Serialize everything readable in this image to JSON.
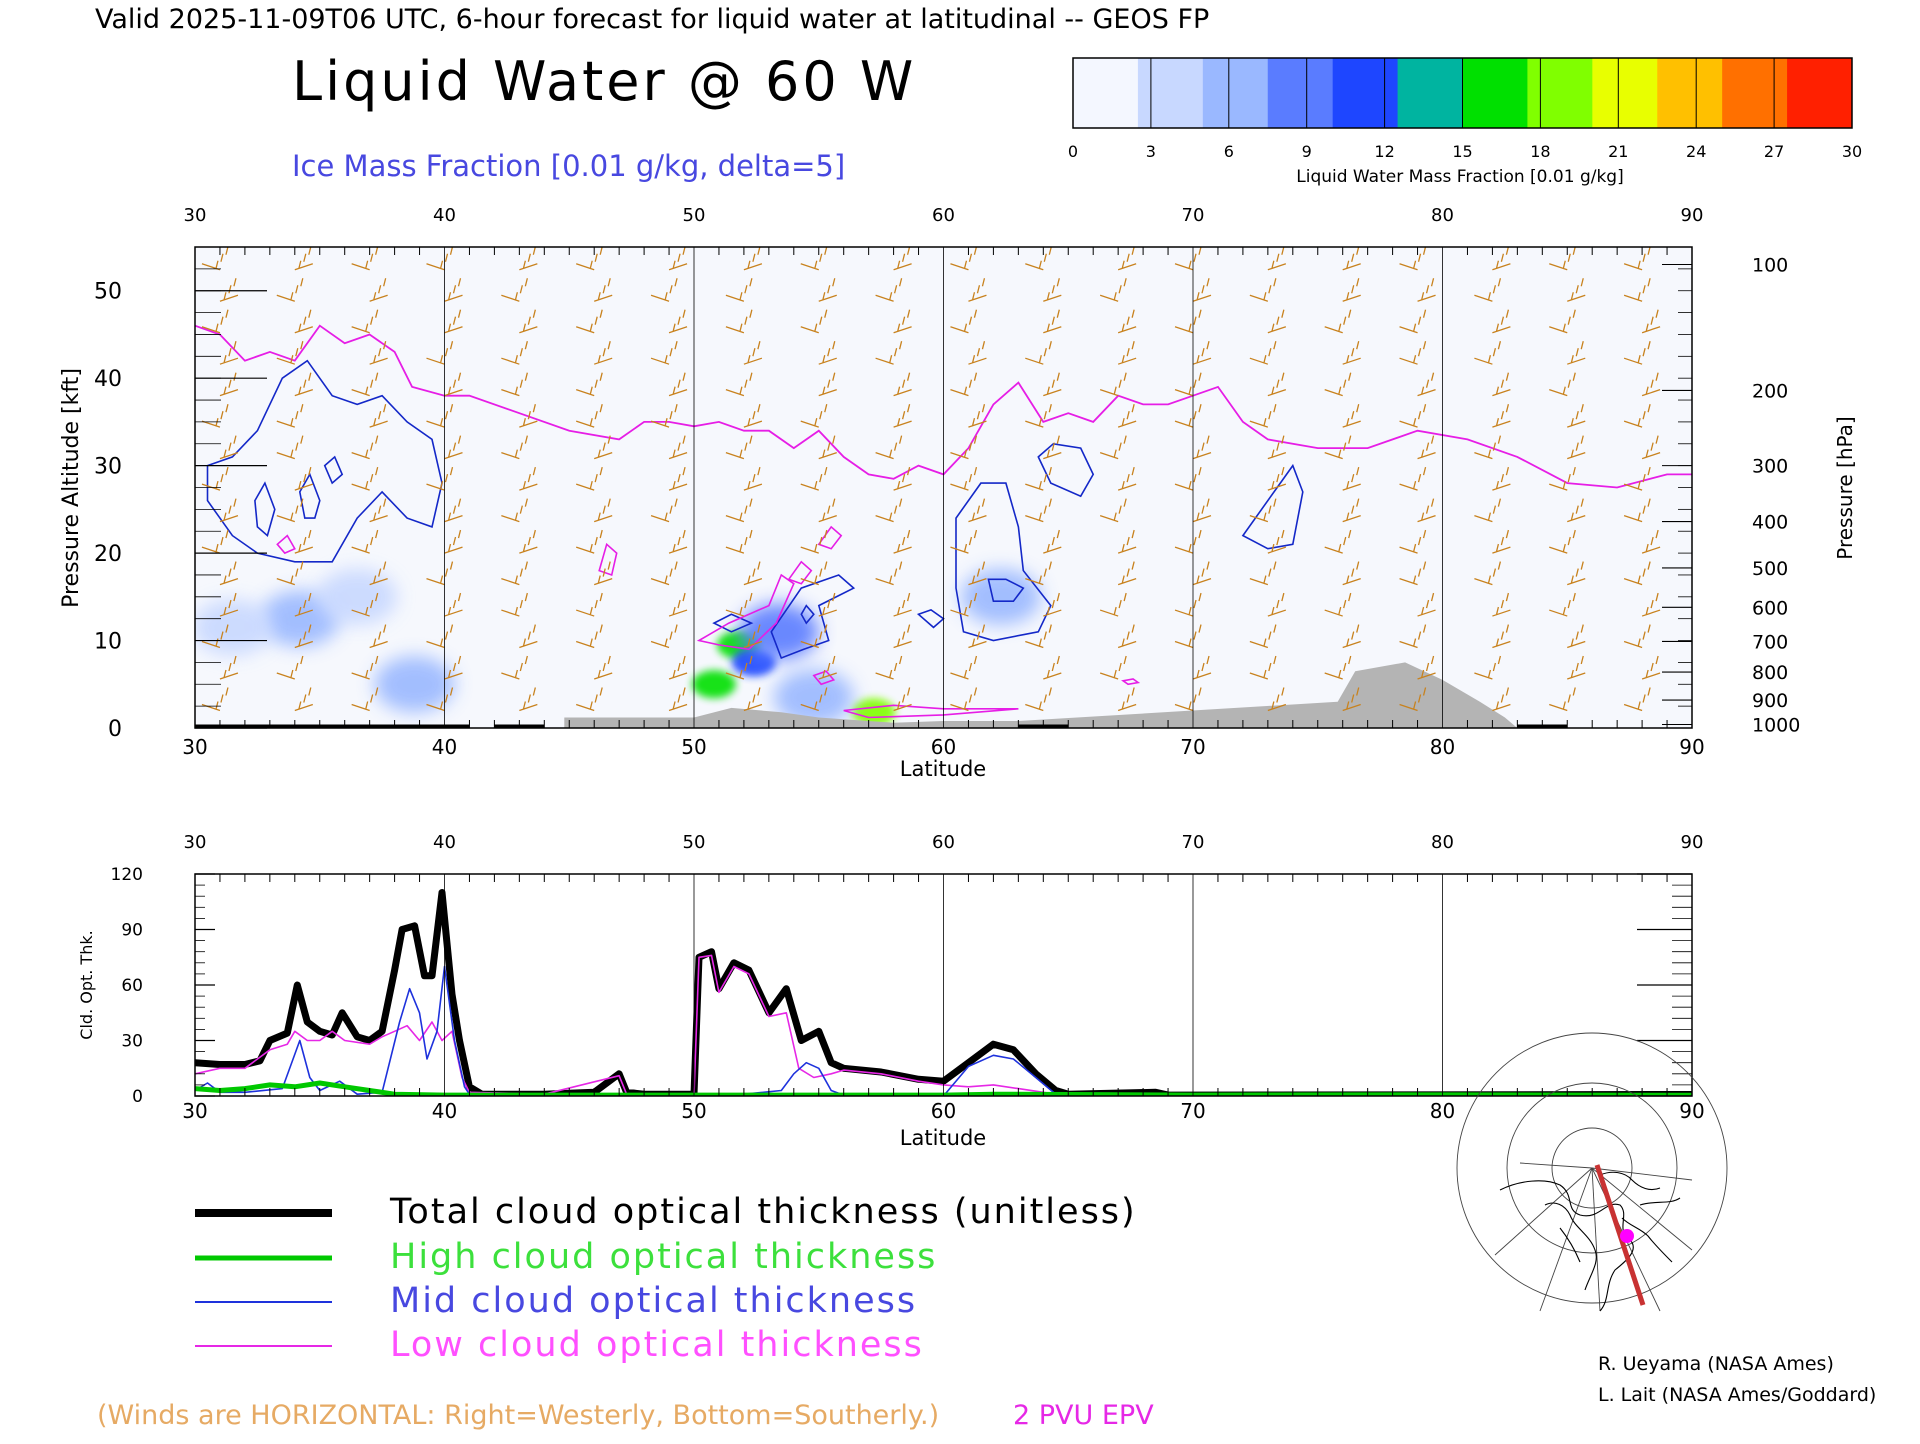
{
  "header": {
    "valid_line": "Valid 2025-11-09T06 UTC, 6-hour forecast for liquid water at latitudinal -- GEOS FP",
    "main_title": "Liquid Water @ 60 W",
    "subtitle": "Ice Mass Fraction [0.01 g/kg, delta=5]"
  },
  "colorbar": {
    "label": "Liquid Water Mass Fraction [0.01 g/kg]",
    "ticks": [
      "0",
      "3",
      "6",
      "9",
      "12",
      "15",
      "18",
      "21",
      "24",
      "27",
      "30"
    ],
    "colors": [
      "#f4f7ff",
      "#c8d8ff",
      "#9ab8ff",
      "#5a7cff",
      "#1e46ff",
      "#00b4a0",
      "#00e000",
      "#80ff00",
      "#e8ff00",
      "#ffc000",
      "#ff7000",
      "#ff2000"
    ]
  },
  "colors": {
    "wind_barb": "#c8821e",
    "ice_contour": "#1428c8",
    "epv_contour": "#e61ee6",
    "terrain": "#b4b4b4",
    "total": "#000000",
    "high": "#00c800",
    "mid": "#1e32dc",
    "low": "#e628e6"
  },
  "chart_data": [
    {
      "type": "heatmap",
      "title": "Liquid Water @ 60 W",
      "subtitle": "Ice Mass Fraction [0.01 g/kg, delta=5]",
      "xlabel": "Latitude",
      "ylabel": "Pressure Altitude [kft]",
      "ylabel_right": "Pressure [hPa]",
      "xlim": [
        30,
        90
      ],
      "ylim": [
        0,
        55
      ],
      "x_ticks": [
        "30",
        "40",
        "50",
        "60",
        "70",
        "80",
        "90"
      ],
      "y_ticks": [
        "0",
        "10",
        "20",
        "30",
        "40",
        "50"
      ],
      "pressure_ticks": [
        {
          "label": "100",
          "kft": 53
        },
        {
          "label": "200",
          "kft": 38.6
        },
        {
          "label": "300",
          "kft": 30
        },
        {
          "label": "400",
          "kft": 23.6
        },
        {
          "label": "500",
          "kft": 18.3
        },
        {
          "label": "600",
          "kft": 13.8
        },
        {
          "label": "700",
          "kft": 9.9
        },
        {
          "label": "800",
          "kft": 6.4
        },
        {
          "label": "900",
          "kft": 3.2
        },
        {
          "label": "1000",
          "kft": 0.4
        }
      ],
      "liquid_water_blobs": [
        {
          "lat": 51.8,
          "kft": 9.5,
          "value": 18
        },
        {
          "lat": 50.8,
          "kft": 5.0,
          "value": 18
        },
        {
          "lat": 52.4,
          "kft": 7.5,
          "value": 12
        },
        {
          "lat": 53.4,
          "kft": 11.0,
          "value": 9
        },
        {
          "lat": 57.2,
          "kft": 1.8,
          "value": 21
        },
        {
          "lat": 34.2,
          "kft": 12.5,
          "value": 6
        },
        {
          "lat": 38.8,
          "kft": 5.0,
          "value": 6
        },
        {
          "lat": 62.3,
          "kft": 15.0,
          "value": 6
        },
        {
          "lat": 31.5,
          "kft": 11.5,
          "value": 3
        },
        {
          "lat": 36.5,
          "kft": 15.0,
          "value": 3
        },
        {
          "lat": 54.8,
          "kft": 3.5,
          "value": 6
        }
      ],
      "epv_2pvu_line": [
        [
          30,
          46
        ],
        [
          31,
          45
        ],
        [
          32,
          42
        ],
        [
          33,
          43
        ],
        [
          34,
          42
        ],
        [
          35,
          46
        ],
        [
          36,
          44
        ],
        [
          37,
          45
        ],
        [
          38,
          43
        ],
        [
          38.7,
          39
        ],
        [
          40,
          38
        ],
        [
          41,
          38
        ],
        [
          43,
          36
        ],
        [
          45,
          34
        ],
        [
          47,
          33
        ],
        [
          48,
          35
        ],
        [
          49,
          35
        ],
        [
          50,
          34.5
        ],
        [
          51,
          35
        ],
        [
          52,
          34
        ],
        [
          53,
          34
        ],
        [
          54,
          32
        ],
        [
          55,
          34
        ],
        [
          56,
          31
        ],
        [
          57,
          29
        ],
        [
          58,
          28.5
        ],
        [
          59,
          30
        ],
        [
          60,
          29
        ],
        [
          61,
          32
        ],
        [
          62,
          37
        ],
        [
          63,
          39.5
        ],
        [
          64,
          35
        ],
        [
          65,
          36
        ],
        [
          66,
          35
        ],
        [
          67,
          38
        ],
        [
          68,
          37
        ],
        [
          69,
          37
        ],
        [
          70,
          38
        ],
        [
          71,
          39
        ],
        [
          72,
          35
        ],
        [
          73,
          33
        ],
        [
          75,
          32
        ],
        [
          77,
          32
        ],
        [
          79,
          34
        ],
        [
          81,
          33
        ],
        [
          83,
          31
        ],
        [
          85,
          28
        ],
        [
          87,
          27.5
        ],
        [
          89,
          29
        ],
        [
          90,
          29
        ]
      ],
      "terrain": [
        [
          44.8,
          1.2
        ],
        [
          50,
          1.2
        ],
        [
          51.5,
          2.3
        ],
        [
          53.5,
          1.8
        ],
        [
          55,
          1.2
        ],
        [
          58,
          0.6
        ],
        [
          60,
          0.8
        ],
        [
          63,
          0.8
        ],
        [
          75.8,
          3.0
        ],
        [
          76.5,
          6.5
        ],
        [
          78.5,
          7.5
        ],
        [
          80,
          5.5
        ],
        [
          81.5,
          3.0
        ],
        [
          82.5,
          1.2
        ],
        [
          83,
          0
        ]
      ]
    },
    {
      "type": "line",
      "xlabel": "Latitude",
      "ylabel": "Cld. Opt. Thk.",
      "xlim": [
        30,
        90
      ],
      "ylim": [
        0,
        120
      ],
      "x_ticks": [
        "30",
        "40",
        "50",
        "60",
        "70",
        "80",
        "90"
      ],
      "y_ticks": [
        "0",
        "30",
        "60",
        "90",
        "120"
      ],
      "series": [
        {
          "name": "Total cloud optical thickness (unitless)",
          "color": "#000000",
          "points": [
            [
              30,
              18
            ],
            [
              31,
              17
            ],
            [
              32,
              17
            ],
            [
              32.6,
              19
            ],
            [
              33,
              30
            ],
            [
              33.7,
              34
            ],
            [
              34.1,
              60
            ],
            [
              34.5,
              40
            ],
            [
              35,
              35
            ],
            [
              35.5,
              33
            ],
            [
              35.9,
              45
            ],
            [
              36.5,
              32
            ],
            [
              37,
              30
            ],
            [
              37.5,
              35
            ],
            [
              38,
              68
            ],
            [
              38.3,
              90
            ],
            [
              38.8,
              92
            ],
            [
              39.2,
              65
            ],
            [
              39.5,
              65
            ],
            [
              39.9,
              110
            ],
            [
              40.3,
              55
            ],
            [
              40.6,
              30
            ],
            [
              41,
              5
            ],
            [
              41.5,
              1
            ],
            [
              44,
              1
            ],
            [
              46,
              2
            ],
            [
              47,
              12
            ],
            [
              47.3,
              2
            ],
            [
              48,
              1
            ],
            [
              50,
              1
            ],
            [
              50.2,
              75
            ],
            [
              50.7,
              78
            ],
            [
              51,
              58
            ],
            [
              51.6,
              72
            ],
            [
              52.2,
              68
            ],
            [
              53,
              45
            ],
            [
              53.7,
              58
            ],
            [
              54.3,
              30
            ],
            [
              55,
              35
            ],
            [
              55.5,
              18
            ],
            [
              56,
              15
            ],
            [
              57.5,
              13
            ],
            [
              59,
              9
            ],
            [
              60,
              8
            ],
            [
              61,
              18
            ],
            [
              62,
              28
            ],
            [
              62.8,
              25
            ],
            [
              63.7,
              12
            ],
            [
              64.5,
              3
            ],
            [
              65,
              1
            ],
            [
              68.5,
              2
            ],
            [
              69,
              0.5
            ],
            [
              90,
              0.8
            ]
          ]
        },
        {
          "name": "High cloud optical thickness",
          "color": "#00c800",
          "points": [
            [
              30,
              4
            ],
            [
              31,
              3
            ],
            [
              32,
              4
            ],
            [
              33,
              6
            ],
            [
              34,
              5
            ],
            [
              35,
              7
            ],
            [
              36,
              5
            ],
            [
              37,
              3
            ],
            [
              38,
              1
            ],
            [
              40,
              0.5
            ],
            [
              50,
              0.5
            ],
            [
              60,
              0.5
            ],
            [
              62,
              1
            ],
            [
              70,
              0.5
            ],
            [
              80,
              0.6
            ],
            [
              90,
              0.4
            ]
          ]
        },
        {
          "name": "Mid cloud optical thickness",
          "color": "#1e32dc",
          "points": [
            [
              30,
              3
            ],
            [
              30.5,
              7
            ],
            [
              31,
              2
            ],
            [
              32,
              2
            ],
            [
              33.5,
              4
            ],
            [
              34.2,
              30
            ],
            [
              34.6,
              10
            ],
            [
              35,
              3
            ],
            [
              35.8,
              8
            ],
            [
              36.5,
              1
            ],
            [
              37.5,
              2
            ],
            [
              38.2,
              40
            ],
            [
              38.6,
              58
            ],
            [
              39,
              45
            ],
            [
              39.3,
              20
            ],
            [
              39.7,
              35
            ],
            [
              40,
              70
            ],
            [
              40.4,
              30
            ],
            [
              40.8,
              5
            ],
            [
              41,
              1
            ],
            [
              50,
              0
            ],
            [
              52,
              1
            ],
            [
              53.5,
              3
            ],
            [
              54,
              12
            ],
            [
              54.5,
              18
            ],
            [
              55,
              15
            ],
            [
              55.5,
              3
            ],
            [
              56,
              0.5
            ],
            [
              60,
              0
            ],
            [
              61,
              16
            ],
            [
              62,
              22
            ],
            [
              62.8,
              20
            ],
            [
              63.7,
              10
            ],
            [
              64.5,
              1
            ],
            [
              90,
              0
            ]
          ]
        },
        {
          "name": "Low cloud optical thickness",
          "color": "#e628e6",
          "points": [
            [
              30,
              12
            ],
            [
              31,
              15
            ],
            [
              32,
              15
            ],
            [
              33,
              25
            ],
            [
              33.7,
              28
            ],
            [
              34,
              35
            ],
            [
              34.5,
              30
            ],
            [
              35,
              30
            ],
            [
              35.5,
              35
            ],
            [
              36,
              30
            ],
            [
              37,
              28
            ],
            [
              37.5,
              32
            ],
            [
              38,
              35
            ],
            [
              38.5,
              38
            ],
            [
              39,
              30
            ],
            [
              39.5,
              40
            ],
            [
              39.9,
              30
            ],
            [
              40.3,
              35
            ],
            [
              40.7,
              10
            ],
            [
              41,
              2
            ],
            [
              44,
              1
            ],
            [
              47,
              11
            ],
            [
              47.3,
              1
            ],
            [
              50,
              1
            ],
            [
              50.2,
              75
            ],
            [
              50.7,
              76
            ],
            [
              51,
              56
            ],
            [
              51.6,
              70
            ],
            [
              52.2,
              66
            ],
            [
              53,
              43
            ],
            [
              53.7,
              45
            ],
            [
              54.2,
              15
            ],
            [
              54.8,
              10
            ],
            [
              55.5,
              12
            ],
            [
              56,
              14
            ],
            [
              57.5,
              12
            ],
            [
              59,
              8
            ],
            [
              60,
              6
            ],
            [
              61,
              5
            ],
            [
              62,
              6
            ],
            [
              63,
              4
            ],
            [
              64.5,
              1
            ],
            [
              90,
              0.5
            ]
          ]
        }
      ]
    }
  ],
  "legend": {
    "total": "Total cloud optical thickness (unitless)",
    "high": "High cloud optical thickness",
    "mid": "Mid cloud optical thickness",
    "low": "Low cloud optical thickness"
  },
  "footer": {
    "winds_note": "(Winds are HORIZONTAL: Right=Westerly, Bottom=Southerly.)",
    "epv_label": "2 PVU EPV",
    "credit1": "R. Ueyama (NASA Ames)",
    "credit2": "L. Lait (NASA Ames/Goddard)"
  }
}
